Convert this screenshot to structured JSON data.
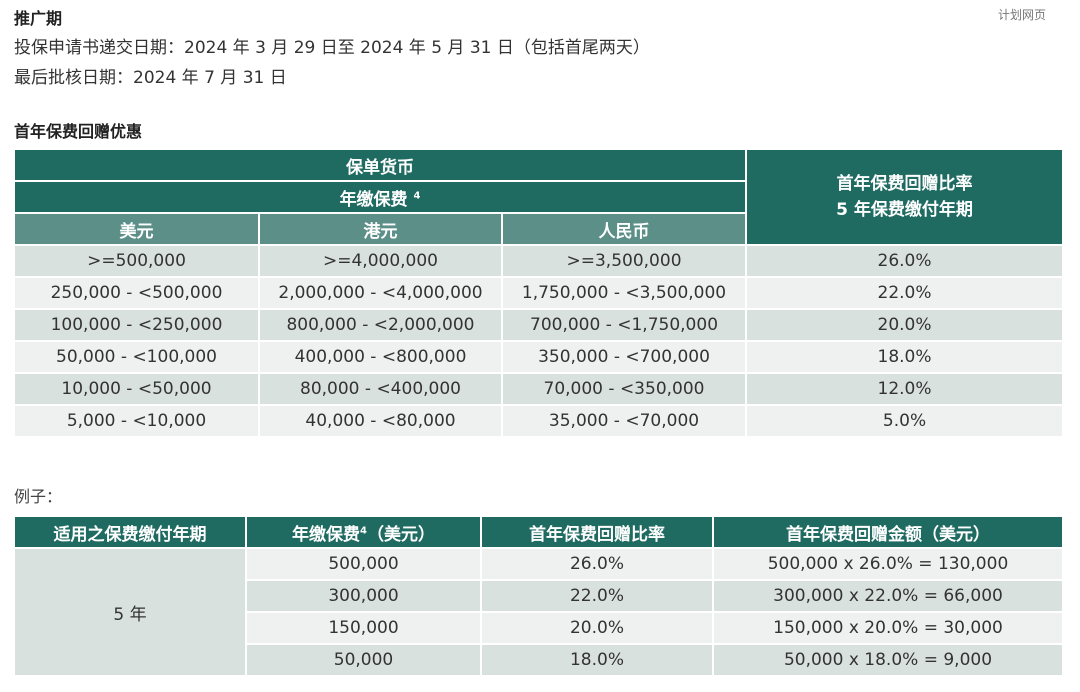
{
  "page_label": "计划网页",
  "promo": {
    "title": "推广期",
    "application_period": "投保申请书递交日期：2024 年 3 月 29 日至 2024 年 5 月 31 日（包括首尾两天）",
    "approval_date": "最后批核日期：2024 年 7 月 31 日"
  },
  "rebate_section": {
    "title": "首年保费回赠优惠",
    "header_policy_currency": "保单货币",
    "header_annual_premium": "年缴保费",
    "header_footnote": "4",
    "header_rate_line1": "首年保费回赠比率",
    "header_rate_line2": "5 年保费缴付年期",
    "col_usd": "美元",
    "col_hkd": "港元",
    "col_rmb": "人民币",
    "rows": [
      {
        "usd": ">=500,000",
        "hkd": ">=4,000,000",
        "rmb": ">=3,500,000",
        "rate": "26.0%"
      },
      {
        "usd": "250,000 - <500,000",
        "hkd": "2,000,000 - <4,000,000",
        "rmb": "1,750,000 - <3,500,000",
        "rate": "22.0%"
      },
      {
        "usd": "100,000 - <250,000",
        "hkd": "800,000 - <2,000,000",
        "rmb": "700,000 - <1,750,000",
        "rate": "20.0%"
      },
      {
        "usd": "50,000 - <100,000",
        "hkd": "400,000 - <800,000",
        "rmb": "350,000 - <700,000",
        "rate": "18.0%"
      },
      {
        "usd": "10,000 - <50,000",
        "hkd": "80,000 - <400,000",
        "rmb": "70,000 - <350,000",
        "rate": "12.0%"
      },
      {
        "usd": "5,000 - <10,000",
        "hkd": "40,000 - <80,000",
        "rmb": "35,000 - <70,000",
        "rate": "5.0%"
      }
    ]
  },
  "example_section": {
    "label": "例子：",
    "col_term": "适用之保费缴付年期",
    "col_premium": "年缴保费",
    "col_premium_footnote": "4",
    "col_premium_unit": "（美元）",
    "col_rate": "首年保费回赠比率",
    "col_amount": "首年保费回赠金额（美元）",
    "term_value": "5 年",
    "rows": [
      {
        "premium": "500,000",
        "rate": "26.0%",
        "amount": "500,000 x 26.0% = 130,000"
      },
      {
        "premium": "300,000",
        "rate": "22.0%",
        "amount": "300,000 x 22.0% = 66,000"
      },
      {
        "premium": "150,000",
        "rate": "20.0%",
        "amount": "150,000 x 20.0% = 30,000"
      },
      {
        "premium": "50,000",
        "rate": "18.0%",
        "amount": "50,000 x 18.0% = 9,000"
      }
    ]
  },
  "colors": {
    "header_dark": "#1f6b62",
    "header_mid": "#5b8f88",
    "row_dark": "#d9e1de",
    "row_light": "#eef1f0"
  }
}
